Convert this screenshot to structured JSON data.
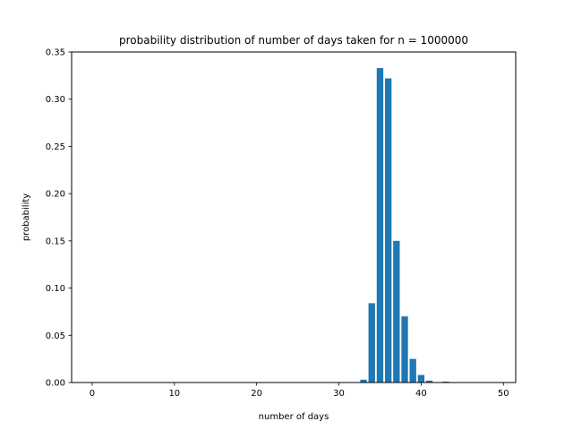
{
  "chart_data": {
    "type": "bar",
    "title": "probability distribution of number of days taken for n = 1000000",
    "xlabel": "number of days",
    "ylabel": "probability",
    "x": [
      0,
      1,
      2,
      3,
      4,
      5,
      6,
      7,
      8,
      9,
      10,
      11,
      12,
      13,
      14,
      15,
      16,
      17,
      18,
      19,
      20,
      21,
      22,
      23,
      24,
      25,
      26,
      27,
      28,
      29,
      30,
      31,
      32,
      33,
      34,
      35,
      36,
      37,
      38,
      39,
      40,
      41,
      42,
      43,
      44,
      45,
      46,
      47,
      48,
      49,
      50
    ],
    "values": [
      0,
      0,
      0,
      0,
      0,
      0,
      0,
      0,
      0,
      0,
      0,
      0,
      0,
      0,
      0,
      0,
      0,
      0,
      0,
      0,
      0,
      0,
      0,
      0,
      0,
      0,
      0,
      0,
      0,
      0,
      0,
      0,
      0,
      0.003,
      0.084,
      0.333,
      0.322,
      0.15,
      0.07,
      0.025,
      0.008,
      0.002,
      0,
      0.001,
      0,
      0,
      0,
      0,
      0,
      0,
      0
    ],
    "xlim": [
      -2.5,
      51.5
    ],
    "ylim": [
      0,
      0.35
    ],
    "xticks": [
      0,
      10,
      20,
      30,
      40,
      50
    ],
    "xtick_labels": [
      "0",
      "10",
      "20",
      "30",
      "40",
      "50"
    ],
    "yticks": [
      0,
      0.05,
      0.1,
      0.15,
      0.2,
      0.25,
      0.3,
      0.35
    ],
    "ytick_labels": [
      "0.00",
      "0.05",
      "0.10",
      "0.15",
      "0.20",
      "0.25",
      "0.30",
      "0.35"
    ],
    "bar_color": "#1f77b4",
    "grid": false
  }
}
